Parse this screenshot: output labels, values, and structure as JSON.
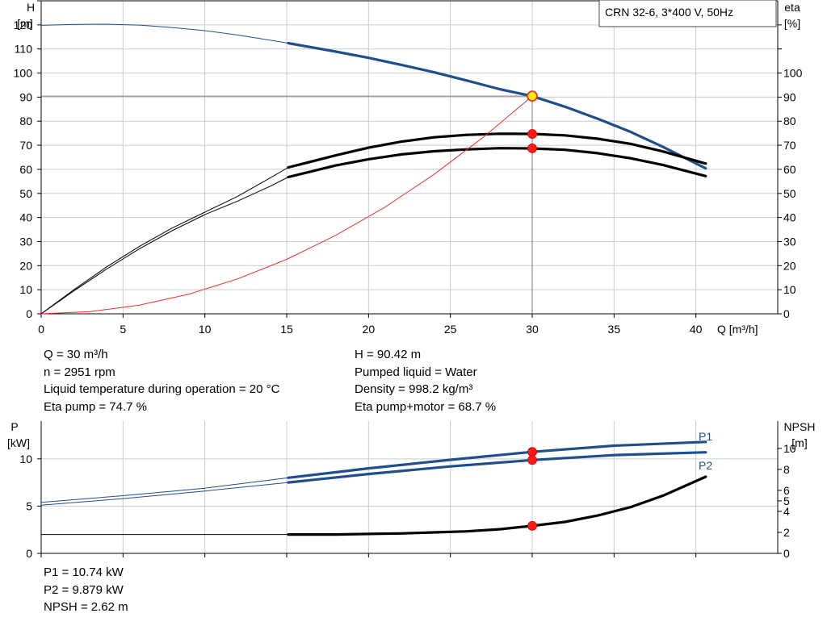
{
  "chart_data": [
    {
      "type": "line",
      "panel": "head-efficiency",
      "model_box": "CRN 32-6, 3*400 V, 50Hz",
      "xlabel": "Q [m³/h]",
      "xlim": [
        0,
        43
      ],
      "xticks": [
        0,
        5,
        10,
        15,
        20,
        25,
        30,
        35,
        40
      ],
      "y_left": {
        "label_top": "H",
        "label_unit": "[m]",
        "lim": [
          0,
          130
        ],
        "ticks": [
          0,
          10,
          20,
          30,
          40,
          50,
          60,
          70,
          80,
          90,
          100,
          110,
          120
        ]
      },
      "y_right": {
        "label_top": "eta",
        "label_unit": "[%]",
        "lim": [
          0,
          130
        ],
        "ticks": [
          0,
          10,
          20,
          30,
          40,
          50,
          60,
          70,
          80,
          90,
          100
        ]
      },
      "grid": true,
      "operating_point": {
        "q": 30,
        "h": 90.42
      },
      "series": [
        {
          "key": "head",
          "color": "#1f4e8c",
          "axis": "left",
          "thick_from": 15.1,
          "x": [
            0,
            2,
            4,
            6,
            8,
            10,
            12,
            14,
            15.1,
            18,
            20,
            22,
            24,
            26,
            28,
            30,
            32,
            34,
            36,
            38,
            40.6
          ],
          "y": [
            119.8,
            120.2,
            120.3,
            119.9,
            118.9,
            117.6,
            115.8,
            113.6,
            112.4,
            108.9,
            106.3,
            103.4,
            100.3,
            96.9,
            93.3,
            90.4,
            86.0,
            81.0,
            75.6,
            69.3,
            60.4
          ]
        },
        {
          "key": "eta_pump",
          "color": "#000000",
          "axis": "right",
          "thick_from": 15.1,
          "x": [
            0,
            2,
            4,
            6,
            8,
            10,
            12,
            14,
            15.1,
            18,
            20,
            22,
            24,
            26,
            28,
            30,
            32,
            34,
            36,
            38,
            40.6
          ],
          "y": [
            0,
            10,
            19.5,
            28,
            35.6,
            42.2,
            48.8,
            56.5,
            60.8,
            65.8,
            69.0,
            71.5,
            73.3,
            74.3,
            74.8,
            74.7,
            74.1,
            72.7,
            70.6,
            67.4,
            62.4
          ]
        },
        {
          "key": "eta_total",
          "color": "#000000",
          "axis": "right",
          "thick_from": 15.1,
          "x": [
            0,
            2,
            4,
            6,
            8,
            10,
            12,
            14,
            15.1,
            18,
            20,
            22,
            24,
            26,
            28,
            30,
            32,
            34,
            36,
            38,
            40.6
          ],
          "y": [
            0,
            9.5,
            18.6,
            27,
            34.5,
            41.2,
            46.8,
            53,
            56.8,
            61.6,
            64.2,
            66.2,
            67.5,
            68.3,
            68.8,
            68.7,
            68.1,
            66.7,
            64.6,
            61.8,
            57.2
          ]
        },
        {
          "key": "system",
          "color": "#e8312d",
          "axis": "left",
          "thick_from": 99,
          "x": [
            0,
            3,
            6,
            9,
            12,
            15,
            18,
            21,
            24,
            27,
            30
          ],
          "y": [
            0,
            0.9,
            3.6,
            8.1,
            14.5,
            22.6,
            32.6,
            44.3,
            57.9,
            73.3,
            90.4
          ]
        }
      ],
      "markers": [
        {
          "x": 30,
          "y": 90.42,
          "axis": "left",
          "style": "duty"
        },
        {
          "x": 30,
          "y": 74.7,
          "axis": "right",
          "style": "point"
        },
        {
          "x": 30,
          "y": 68.7,
          "axis": "right",
          "style": "point"
        }
      ]
    },
    {
      "type": "line",
      "panel": "power-npsh",
      "xlim": [
        0,
        43
      ],
      "y_left": {
        "label_top": "P",
        "label_unit": "[kW]",
        "lim": [
          0,
          14
        ],
        "ticks": [
          0,
          5,
          10
        ]
      },
      "y_right": {
        "label_top": "NPSH",
        "label_unit": "[m]",
        "lim": [
          0,
          12.6
        ],
        "ticks": [
          0,
          2,
          4,
          5,
          6,
          8,
          10
        ]
      },
      "grid": true,
      "series": [
        {
          "key": "p1",
          "name": "P1",
          "color": "#1f4e8c",
          "axis": "left",
          "thick_from": 15.1,
          "x": [
            0,
            5,
            10,
            15.1,
            20,
            25,
            30,
            35,
            40.6
          ],
          "y": [
            5.4,
            6.1,
            6.9,
            8.0,
            9.0,
            9.9,
            10.74,
            11.4,
            11.8
          ]
        },
        {
          "key": "p2",
          "name": "P2",
          "color": "#1f4e8c",
          "axis": "left",
          "thick_from": 15.1,
          "x": [
            0,
            5,
            10,
            15.1,
            20,
            25,
            30,
            35,
            40.6
          ],
          "y": [
            5.1,
            5.8,
            6.6,
            7.5,
            8.4,
            9.2,
            9.879,
            10.4,
            10.7
          ]
        },
        {
          "key": "npsh",
          "color": "#000000",
          "axis": "right",
          "thick_from": 15.1,
          "x": [
            0,
            5,
            10,
            15.1,
            18,
            20,
            22,
            24,
            26,
            28,
            30,
            32,
            34,
            36,
            38,
            40.6
          ],
          "y": [
            1.8,
            1.8,
            1.8,
            1.8,
            1.8,
            1.85,
            1.9,
            2.0,
            2.1,
            2.3,
            2.62,
            3.0,
            3.6,
            4.4,
            5.5,
            7.3
          ]
        }
      ],
      "markers": [
        {
          "x": 30,
          "y": 10.74,
          "axis": "left",
          "style": "point"
        },
        {
          "x": 30,
          "y": 9.879,
          "axis": "left",
          "style": "point"
        },
        {
          "x": 30,
          "y": 2.62,
          "axis": "right",
          "style": "point"
        }
      ]
    }
  ],
  "info": {
    "left": [
      "Q = 30 m³/h",
      "n = 2951 rpm",
      "Liquid temperature during operation = 20 °C",
      "Eta pump = 74.7 %"
    ],
    "right": [
      "H = 90.42 m",
      "Pumped liquid = Water",
      "Density = 998.2 kg/m³",
      "Eta pump+motor = 68.7 %"
    ],
    "bottom": [
      "P1 = 10.74 kW",
      "P2 = 9.879 kW",
      "NPSH = 2.62 m"
    ]
  }
}
